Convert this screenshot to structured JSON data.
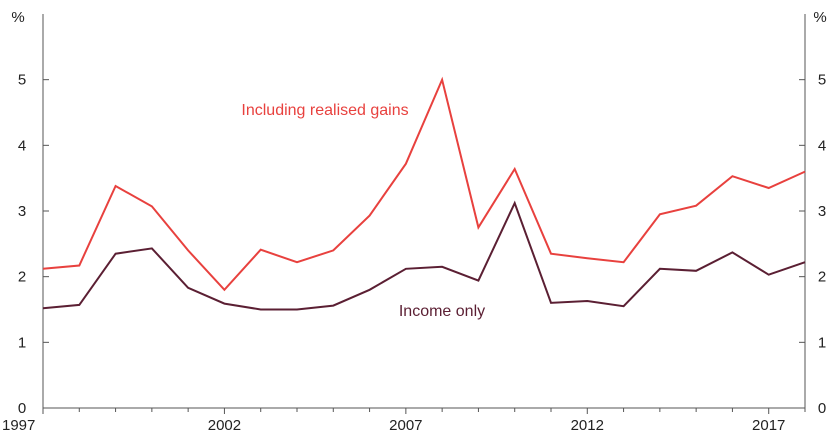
{
  "chart_data": {
    "type": "line",
    "ylabel_left": "%",
    "ylabel_right": "%",
    "ylim": [
      0,
      6
    ],
    "yticks": [
      0,
      1,
      2,
      3,
      4,
      5
    ],
    "xlim": [
      1997,
      2018
    ],
    "xticks": [
      1997,
      2002,
      2007,
      2012,
      2017
    ],
    "grid": false,
    "x": [
      1997,
      1998,
      1999,
      2000,
      2001,
      2002,
      2003,
      2004,
      2005,
      2006,
      2007,
      2008,
      2009,
      2010,
      2011,
      2012,
      2013,
      2014,
      2015,
      2016,
      2017,
      2018
    ],
    "series": [
      {
        "name": "Including realised gains",
        "color": "#e8413e",
        "values": [
          2.12,
          2.17,
          3.38,
          3.07,
          2.4,
          1.8,
          2.41,
          2.22,
          2.4,
          2.93,
          3.72,
          5.0,
          2.75,
          3.64,
          2.35,
          2.28,
          2.22,
          2.95,
          3.08,
          3.53,
          3.35,
          3.6
        ]
      },
      {
        "name": "Income only",
        "color": "#5b1f33",
        "values": [
          1.52,
          1.57,
          2.35,
          2.43,
          1.83,
          1.59,
          1.5,
          1.5,
          1.56,
          1.8,
          2.12,
          2.15,
          1.94,
          3.12,
          1.6,
          1.63,
          1.55,
          2.12,
          2.09,
          2.37,
          2.03,
          2.22
        ]
      }
    ]
  }
}
